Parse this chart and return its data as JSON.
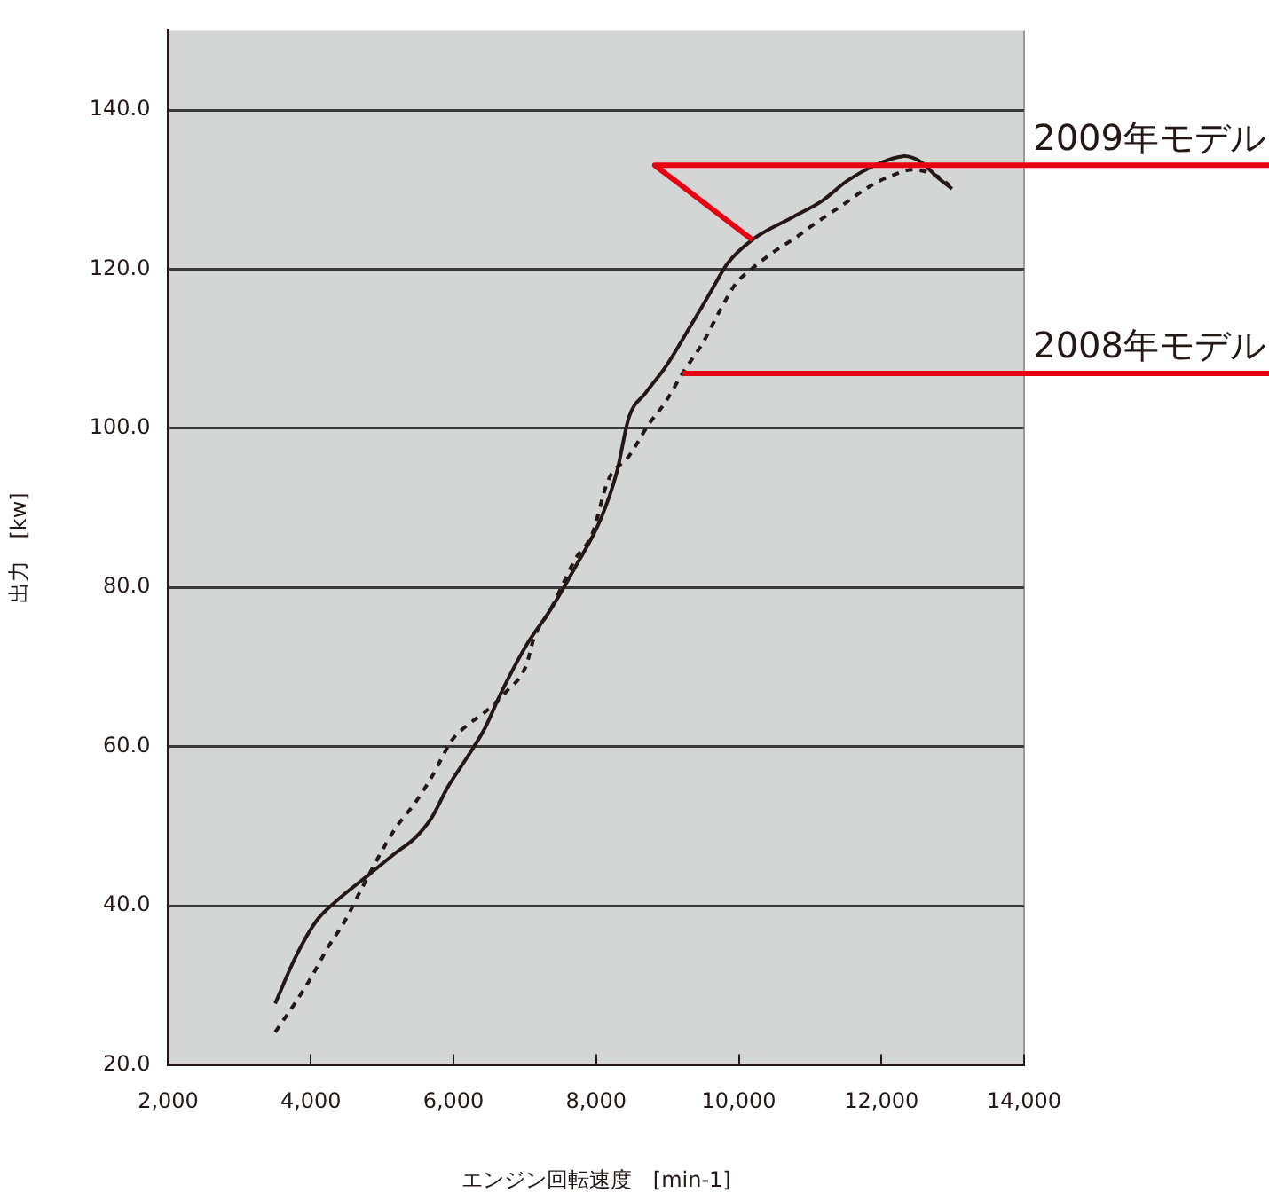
{
  "chart_data": {
    "type": "line",
    "xlabel": "エンジン回転速度　[min-1]",
    "ylabel": "出力　[kw]",
    "xlim": [
      2000,
      14000
    ],
    "xticks": [
      {
        "value": 2000,
        "label": "2,000"
      },
      {
        "value": 4000,
        "label": "4,000"
      },
      {
        "value": 6000,
        "label": "6,000"
      },
      {
        "value": 8000,
        "label": "8,000"
      },
      {
        "value": 10000,
        "label": "10,000"
      },
      {
        "value": 12000,
        "label": "12,000"
      },
      {
        "value": 14000,
        "label": "14,000"
      }
    ],
    "ylim": [
      20,
      150
    ],
    "yticks": [
      {
        "value": 20,
        "label": "20.0"
      },
      {
        "value": 40,
        "label": "40.0"
      },
      {
        "value": 60,
        "label": "60.0"
      },
      {
        "value": 80,
        "label": "80.0"
      },
      {
        "value": 100,
        "label": "100.0"
      },
      {
        "value": 120,
        "label": "120.0"
      },
      {
        "value": 140,
        "label": "140.0"
      }
    ],
    "grid": "y",
    "legend": false,
    "marker": "none",
    "series": [
      {
        "name": "2009年モデル",
        "color": "#231815",
        "line_style": "solid",
        "x": [
          3500,
          3790,
          4080,
          4360,
          4830,
          5170,
          5460,
          5690,
          5920,
          6210,
          6440,
          6670,
          7020,
          7360,
          7710,
          8060,
          8290,
          8460,
          8690,
          8980,
          9320,
          9610,
          9840,
          10190,
          10770,
          11170,
          11520,
          11920,
          12320,
          12550,
          12780,
          12990
        ],
        "values": [
          27.7,
          33.6,
          38.1,
          40.6,
          44.0,
          46.5,
          48.5,
          51.0,
          54.9,
          58.9,
          62.3,
          66.8,
          72.7,
          77.2,
          82.6,
          88.5,
          94.5,
          101.4,
          104.4,
          107.8,
          112.8,
          117.2,
          120.7,
          123.7,
          126.6,
          128.6,
          131.1,
          133.1,
          134.2,
          133.5,
          131.6,
          130.1
        ]
      },
      {
        "name": "2008年モデル",
        "color": "#231815",
        "line_style": "dashed",
        "x": [
          3500,
          3790,
          4020,
          4230,
          4480,
          4710,
          5170,
          5460,
          5690,
          5980,
          6210,
          6440,
          6730,
          7020,
          7130,
          7360,
          7710,
          7940,
          8170,
          8460,
          8730,
          8980,
          9210,
          9500,
          9730,
          9960,
          10190,
          10480,
          10820,
          11000,
          11460,
          11870,
          12100,
          12440,
          12780,
          12960
        ],
        "values": [
          24.1,
          27.9,
          31.2,
          34.6,
          38.1,
          42.1,
          49.5,
          52.9,
          56.1,
          60.8,
          62.8,
          64.3,
          66.8,
          70.2,
          73.7,
          77.2,
          83.6,
          86.6,
          93.5,
          96.5,
          100.4,
          103.4,
          106.9,
          110.8,
          114.7,
          118.2,
          120.1,
          122.1,
          124.1,
          125.3,
          128.1,
          130.6,
          131.6,
          132.5,
          131.7,
          130.5
        ]
      }
    ]
  }
}
